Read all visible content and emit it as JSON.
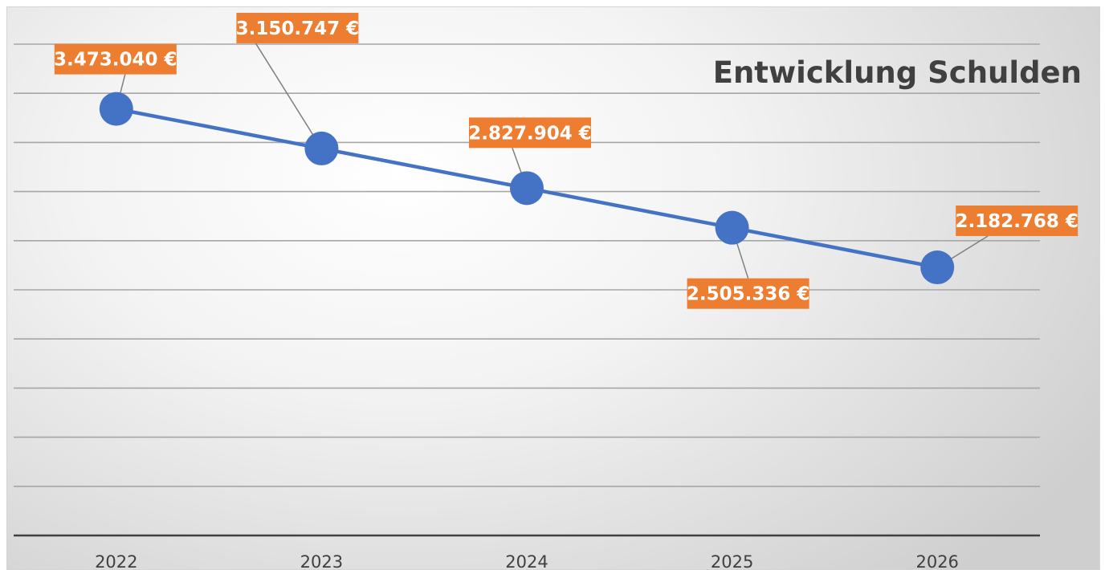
{
  "chart_data": {
    "type": "line",
    "title": "Entwicklung Schulden",
    "xlabel": "",
    "ylabel": "",
    "categories": [
      "2022",
      "2023",
      "2024",
      "2025",
      "2026"
    ],
    "series": [
      {
        "values": [
          3473040,
          3150747,
          2827904,
          2505336,
          2182768
        ],
        "labels": [
          "3.473.040 €",
          "3.150.747 €",
          "2.827.904 €",
          "2.505.336 €",
          "2.182.768 €"
        ],
        "label_position": [
          "above",
          "above",
          "above",
          "below",
          "above"
        ]
      }
    ],
    "ylim": [
      0,
      4000000
    ],
    "grid": true,
    "legend": "none",
    "colors": {
      "line": "#4472c4",
      "marker": "#4472c4",
      "label_background": "#ed7d31",
      "label_text": "#ffffff",
      "gridline": "#a6a6a6",
      "axis": "#404040",
      "leader_line": "#7f7f7f"
    }
  }
}
